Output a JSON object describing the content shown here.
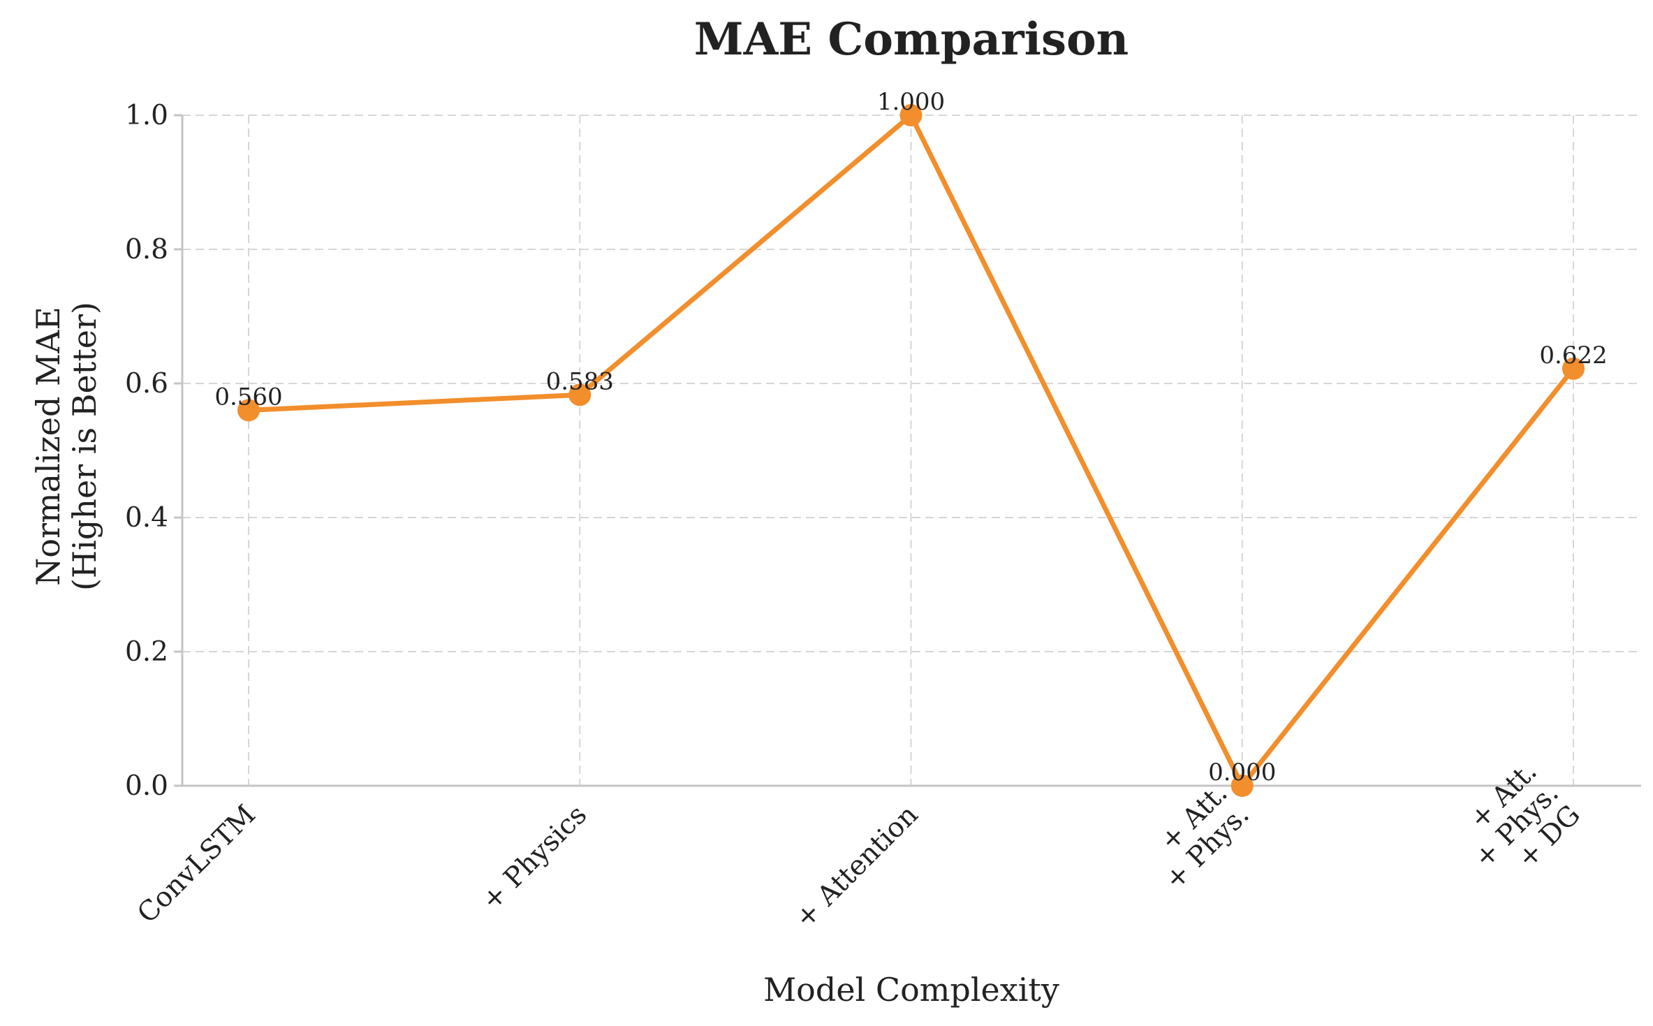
{
  "chart_data": {
    "type": "line",
    "title": "MAE Comparison",
    "xlabel": "Model Complexity",
    "ylabel": [
      "Normalized MAE",
      "(Higher is Better)"
    ],
    "categories": [
      [
        "ConvLSTM"
      ],
      [
        "+ Physics"
      ],
      [
        "+ Attention"
      ],
      [
        "+ Att.",
        "+ Phys."
      ],
      [
        "+ Att.",
        "+ Phys.",
        "+ DG"
      ]
    ],
    "values": [
      0.56,
      0.583,
      1.0,
      0.0,
      0.622
    ],
    "data_labels": [
      "0.560",
      "0.583",
      "1.000",
      "0.000",
      "0.622"
    ],
    "ylim": [
      0.0,
      1.0
    ],
    "yticks": [
      0.0,
      0.2,
      0.4,
      0.6,
      0.8,
      1.0
    ],
    "ytick_labels": [
      "0.0",
      "0.2",
      "0.4",
      "0.6",
      "0.8",
      "1.0"
    ],
    "grid": true,
    "color": "#f28e2b"
  }
}
